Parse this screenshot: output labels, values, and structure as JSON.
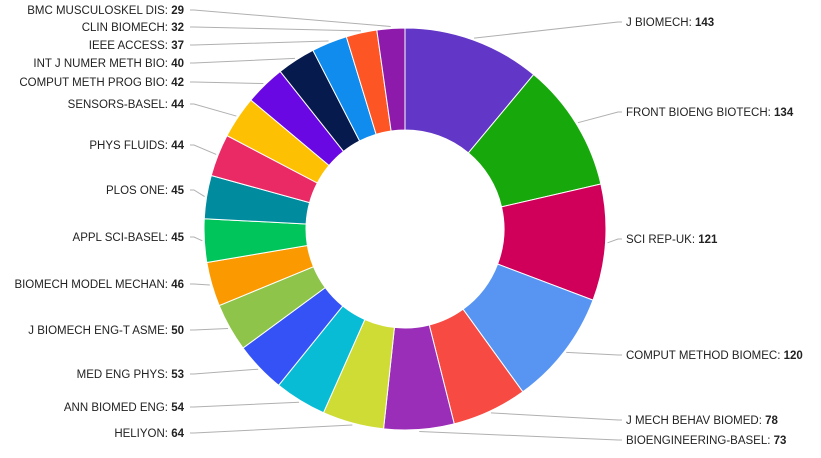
{
  "chart_data": {
    "type": "pie",
    "variant": "donut",
    "title": "",
    "legend": "none",
    "start_angle_deg": 0,
    "direction": "clockwise",
    "slices": [
      {
        "label": "J BIOMECH",
        "value": 143,
        "color": "#6236c6"
      },
      {
        "label": "FRONT BIOENG BIOTECH",
        "value": 134,
        "color": "#17a80b"
      },
      {
        "label": "SCI REP-UK",
        "value": 121,
        "color": "#d0005a"
      },
      {
        "label": "COMPUT METHOD BIOMEC",
        "value": 120,
        "color": "#5895f3"
      },
      {
        "label": "J MECH BEHAV BIOMED",
        "value": 78,
        "color": "#f74a42"
      },
      {
        "label": "BIOENGINEERING-BASEL",
        "value": 73,
        "color": "#9b2eb8"
      },
      {
        "label": "HELIYON",
        "value": 64,
        "color": "#cfdc36"
      },
      {
        "label": "ANN BIOMED ENG",
        "value": 54,
        "color": "#08bcd6"
      },
      {
        "label": "MED ENG PHYS",
        "value": 53,
        "color": "#3552f6"
      },
      {
        "label": "J BIOMECH ENG-T ASME",
        "value": 50,
        "color": "#8ec44a"
      },
      {
        "label": "BIOMECH MODEL MECHAN",
        "value": 46,
        "color": "#fb9a00"
      },
      {
        "label": "APPL SCI-BASEL",
        "value": 45,
        "color": "#00c55a"
      },
      {
        "label": "PLOS ONE",
        "value": 45,
        "color": "#008b9e"
      },
      {
        "label": "PHYS FLUIDS",
        "value": 44,
        "color": "#ea2a64"
      },
      {
        "label": "SENSORS-BASEL",
        "value": 44,
        "color": "#fec003"
      },
      {
        "label": "COMPUT METH PROG BIO",
        "value": 42,
        "color": "#6a08e4"
      },
      {
        "label": "INT J NUMER METH BIO",
        "value": 40,
        "color": "#061a4d"
      },
      {
        "label": "IEEE ACCESS",
        "value": 37,
        "color": "#0f8cee"
      },
      {
        "label": "CLIN BIOMECH",
        "value": 32,
        "color": "#fd5523"
      },
      {
        "label": "BMC MUSCULOSKEL DIS",
        "value": 29,
        "color": "#8e1aac"
      }
    ]
  }
}
